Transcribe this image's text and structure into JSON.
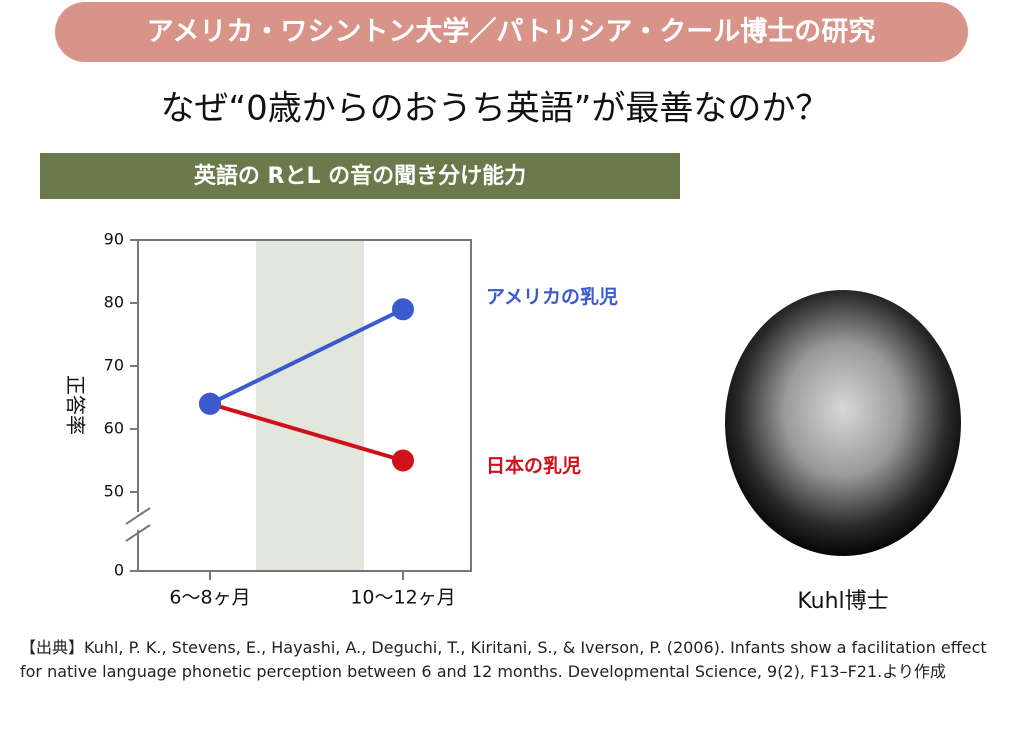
{
  "header": {
    "banner": "アメリカ・ワシントン大学／パトリシア・クール博士の研究",
    "title": "なぜ“0歳からのおうち英語”が最善なのか？"
  },
  "chart_data": {
    "type": "line",
    "title": "英語の RとL の音の聞き分け能力",
    "y_label": "正答率",
    "categories": [
      "6〜8ヶ月",
      "10〜12ヶ月"
    ],
    "series": [
      {
        "name": "日本の乳児",
        "color": "#d0101a",
        "values": [
          64,
          55
        ]
      },
      {
        "name": "アメリカの乳児",
        "color": "#3a5bd0",
        "values": [
          64,
          79
        ]
      }
    ],
    "ylim": [
      0,
      90
    ],
    "yticks": [
      0,
      50,
      60,
      70,
      80,
      90
    ],
    "axis_break": [
      0,
      50
    ]
  },
  "photo": {
    "caption": "Kuhl博士"
  },
  "footer": {
    "source": "【出典】Kuhl, P. K., Stevens, E., Hayashi, A., Deguchi, T., Kiritani, S., & Iverson, P. (2006). Infants show a facilitation effect for native language phonetic perception between 6 and 12 months. Developmental Science, 9(2), F13–F21.より作成"
  }
}
